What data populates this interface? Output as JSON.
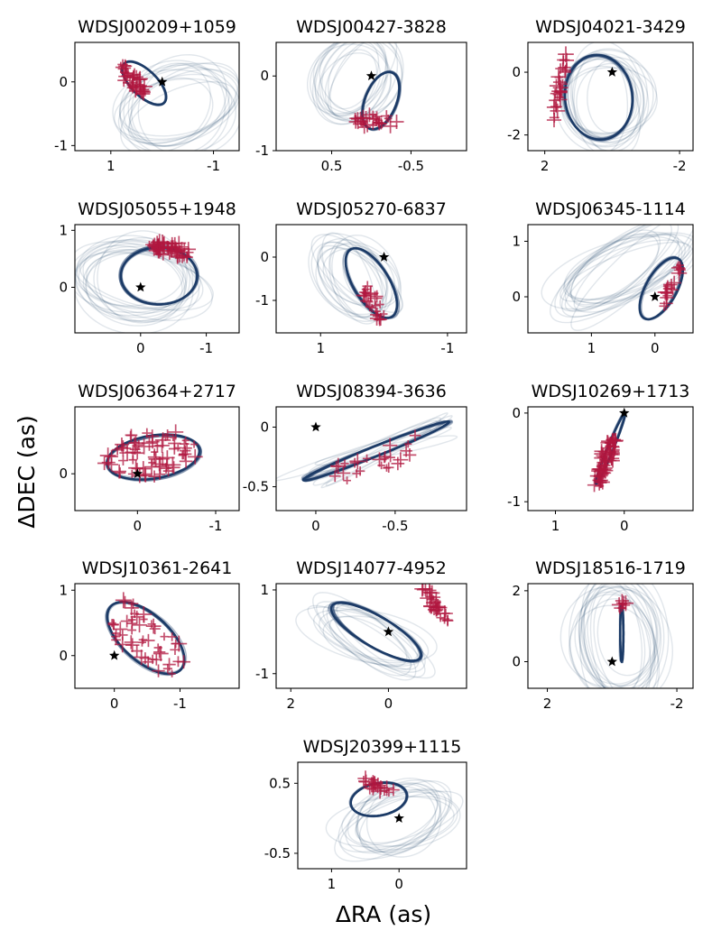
{
  "figure": {
    "xlabel": "ΔRA (as)",
    "ylabel": "ΔDEC (as)"
  },
  "colors": {
    "orbit": "#1b3a66",
    "observation": "#b0173f",
    "primary_star": "#000000"
  },
  "chart_data": [
    {
      "type": "scatter",
      "title": "WDSJ00209+1059",
      "xlim": [
        1.7,
        -1.5
      ],
      "ylim": [
        -1.08,
        0.62
      ],
      "xticks": [
        1,
        -1
      ],
      "xticklabels": [
        "1",
        "-1"
      ],
      "yticks": [
        0,
        -1
      ],
      "yticklabels": [
        "0",
        "-1"
      ],
      "primary": [
        0,
        0
      ],
      "best_orbit": {
        "cx": 0.35,
        "cy": -0.02,
        "a": 0.5,
        "b": 0.22,
        "angle": 35
      },
      "orbit_bundle": {
        "cx": -0.3,
        "cy": -0.4,
        "a": 1.05,
        "b": 0.65,
        "angle": -10,
        "count": 14
      },
      "observations": {
        "cx": 0.6,
        "cy": 0.05,
        "a": 0.35,
        "b": 0.12,
        "angle": 40,
        "count": 40
      }
    },
    {
      "type": "scatter",
      "title": "WDSJ00427-3828",
      "xlim": [
        1.2,
        -1.2
      ],
      "ylim": [
        -1.0,
        0.45
      ],
      "xticks": [
        0.5,
        -0.5
      ],
      "xticklabels": [
        "0.5",
        "-0.5"
      ],
      "yticks": [
        0,
        -1
      ],
      "yticklabels": [
        "0",
        "-1"
      ],
      "primary": [
        0,
        0
      ],
      "best_orbit": {
        "cx": -0.12,
        "cy": -0.33,
        "a": 0.4,
        "b": 0.2,
        "angle": -70
      },
      "orbit_bundle": {
        "cx": 0.2,
        "cy": -0.05,
        "a": 0.6,
        "b": 0.45,
        "angle": -60,
        "count": 14
      },
      "observations": {
        "cx": -0.05,
        "cy": -0.6,
        "a": 0.28,
        "b": 0.1,
        "angle": 0,
        "count": 30
      }
    },
    {
      "type": "scatter",
      "title": "WDSJ04021-3429",
      "xlim": [
        2.5,
        -2.4
      ],
      "ylim": [
        -2.5,
        0.95
      ],
      "xticks": [
        2,
        -2
      ],
      "xticklabels": [
        "2",
        "-2"
      ],
      "yticks": [
        0,
        -2
      ],
      "yticklabels": [
        "0",
        "-2"
      ],
      "primary": [
        0,
        0
      ],
      "best_orbit": {
        "cx": 0.4,
        "cy": -0.8,
        "a": 1.35,
        "b": 1.0,
        "angle": -95
      },
      "orbit_bundle": {
        "cx": 0.2,
        "cy": -0.9,
        "a": 1.5,
        "b": 1.2,
        "angle": -95,
        "count": 14
      },
      "observations": {
        "cx": 1.55,
        "cy": -0.5,
        "a": 1.1,
        "b": 0.12,
        "angle": -80,
        "count": 30
      }
    },
    {
      "type": "scatter",
      "title": "WDSJ05055+1948",
      "xlim": [
        1.0,
        -1.5
      ],
      "ylim": [
        -0.8,
        1.1
      ],
      "xticks": [
        0,
        -1
      ],
      "xticklabels": [
        "0",
        "-1"
      ],
      "yticks": [
        1,
        0
      ],
      "yticklabels": [
        "1",
        "0"
      ],
      "primary": [
        0,
        0
      ],
      "best_orbit": {
        "cx": -0.28,
        "cy": 0.2,
        "a": 0.58,
        "b": 0.5,
        "angle": 0
      },
      "orbit_bundle": {
        "cx": 0.0,
        "cy": 0.1,
        "a": 0.9,
        "b": 0.7,
        "angle": 10,
        "count": 16
      },
      "observations": {
        "cx": -0.45,
        "cy": 0.66,
        "a": 0.35,
        "b": 0.15,
        "angle": 10,
        "count": 60
      }
    },
    {
      "type": "scatter",
      "title": "WDSJ05270-6837",
      "xlim": [
        1.7,
        -1.3
      ],
      "ylim": [
        -1.75,
        0.75
      ],
      "xticks": [
        1,
        -1
      ],
      "xticklabels": [
        "1",
        "-1"
      ],
      "yticks": [
        0,
        -1
      ],
      "yticklabels": [
        "0",
        "-1"
      ],
      "primary": [
        0,
        0
      ],
      "best_orbit": {
        "cx": 0.2,
        "cy": -0.6,
        "a": 0.85,
        "b": 0.3,
        "angle": 70
      },
      "orbit_bundle": {
        "cx": 0.4,
        "cy": -0.5,
        "a": 1.0,
        "b": 0.5,
        "angle": 65,
        "count": 14
      },
      "observations": {
        "cx": 0.18,
        "cy": -1.05,
        "a": 0.45,
        "b": 0.12,
        "angle": 70,
        "count": 25
      }
    },
    {
      "type": "scatter",
      "title": "WDSJ06345-1114",
      "xlim": [
        2.0,
        -0.6
      ],
      "ylim": [
        -0.65,
        1.3
      ],
      "xticks": [
        1,
        0
      ],
      "xticklabels": [
        "1",
        "0"
      ],
      "yticks": [
        1,
        0
      ],
      "yticklabels": [
        "1",
        "0"
      ],
      "primary": [
        0,
        0
      ],
      "best_orbit": {
        "cx": -0.1,
        "cy": 0.15,
        "a": 0.6,
        "b": 0.25,
        "angle": -65
      },
      "orbit_bundle": {
        "cx": 0.5,
        "cy": 0.5,
        "a": 1.2,
        "b": 0.45,
        "angle": -35,
        "count": 16
      },
      "observations": {
        "cx": -0.25,
        "cy": 0.2,
        "a": 0.5,
        "b": 0.06,
        "angle": -70,
        "count": 20
      }
    },
    {
      "type": "scatter",
      "title": "WDSJ06364+2717",
      "xlim": [
        0.8,
        -1.3
      ],
      "ylim": [
        -0.55,
        1.0
      ],
      "xticks": [
        0,
        -1
      ],
      "xticklabels": [
        "0",
        "-1"
      ],
      "yticks": [
        0
      ],
      "yticklabels": [
        "0"
      ],
      "primary": [
        0,
        0
      ],
      "best_orbit": {
        "cx": -0.2,
        "cy": 0.25,
        "a": 0.6,
        "b": 0.32,
        "angle": -12
      },
      "observations": {
        "cx": -0.2,
        "cy": 0.3,
        "a": 0.65,
        "b": 0.35,
        "angle": -12,
        "count": 70
      }
    },
    {
      "type": "scatter",
      "title": "WDSJ08394-3636",
      "xlim": [
        0.25,
        -0.95
      ],
      "ylim": [
        -0.7,
        0.17
      ],
      "xticks": [
        0,
        -0.5
      ],
      "xticklabels": [
        "0",
        "-0.5"
      ],
      "yticks": [
        0,
        -0.5
      ],
      "yticklabels": [
        "0",
        "-0.5"
      ],
      "primary": [
        0,
        0
      ],
      "best_orbit": {
        "cx": -0.38,
        "cy": -0.2,
        "a": 0.52,
        "b": 0.04,
        "angle": -28
      },
      "orbit_bundle": {
        "cx": -0.38,
        "cy": -0.2,
        "a": 0.55,
        "b": 0.05,
        "angle": -28,
        "count": 8
      },
      "observations": {
        "cx": -0.4,
        "cy": -0.26,
        "a": 0.4,
        "b": 0.1,
        "angle": -28,
        "count": 25
      }
    },
    {
      "type": "scatter",
      "title": "WDSJ10269+1713",
      "xlim": [
        1.4,
        -1.0
      ],
      "ylim": [
        -1.1,
        0.07
      ],
      "xticks": [
        1,
        0
      ],
      "xticklabels": [
        "1",
        "0"
      ],
      "yticks": [
        0,
        -1
      ],
      "yticklabels": [
        "0",
        "-1"
      ],
      "primary": [
        0,
        0
      ],
      "best_orbit": {
        "cx": 0.2,
        "cy": -0.4,
        "a": 0.45,
        "b": 0.04,
        "angle": -62
      },
      "observations": {
        "cx": 0.28,
        "cy": -0.55,
        "a": 0.32,
        "b": 0.1,
        "angle": -65,
        "count": 70
      }
    },
    {
      "type": "scatter",
      "title": "WDSJ10361-2641",
      "xlim": [
        0.6,
        -1.9
      ],
      "ylim": [
        -0.5,
        1.1
      ],
      "xticks": [
        0,
        -1
      ],
      "xticklabels": [
        "0",
        "-1"
      ],
      "yticks": [
        1,
        0
      ],
      "yticklabels": [
        "1",
        "0"
      ],
      "primary": [
        0,
        0
      ],
      "best_orbit": {
        "cx": -0.48,
        "cy": 0.27,
        "a": 0.72,
        "b": 0.36,
        "angle": 42
      },
      "observations": {
        "cx": -0.48,
        "cy": 0.3,
        "a": 0.78,
        "b": 0.38,
        "angle": 42,
        "count": 50
      }
    },
    {
      "type": "scatter",
      "title": "WDSJ14077-4952",
      "xlim": [
        2.3,
        -1.6
      ],
      "ylim": [
        -1.35,
        1.15
      ],
      "xticks": [
        2,
        0
      ],
      "xticklabels": [
        "2",
        "0"
      ],
      "yticks": [
        1,
        -1
      ],
      "yticklabels": [
        "1",
        "-1"
      ],
      "primary": [
        0,
        0
      ],
      "best_orbit": {
        "cx": 0.25,
        "cy": 0.0,
        "a": 1.1,
        "b": 0.35,
        "angle": 35
      },
      "orbit_bundle": {
        "cx": 0.4,
        "cy": -0.15,
        "a": 1.25,
        "b": 0.5,
        "angle": 30,
        "count": 12
      },
      "observations": {
        "cx": -0.95,
        "cy": 0.65,
        "a": 0.5,
        "b": 0.12,
        "angle": 60,
        "count": 30
      }
    },
    {
      "type": "scatter",
      "title": "WDSJ18516-1719",
      "xlim": [
        2.6,
        -2.5
      ],
      "ylim": [
        -0.75,
        2.2
      ],
      "xticks": [
        2,
        -2
      ],
      "xticklabels": [
        "2",
        "-2"
      ],
      "yticks": [
        2,
        0
      ],
      "yticklabels": [
        "2",
        "0"
      ],
      "primary": [
        0,
        0
      ],
      "best_orbit": {
        "cx": -0.3,
        "cy": 0.8,
        "a": 0.8,
        "b": 0.05,
        "angle": 90
      },
      "orbit_bundle": {
        "cx": -0.2,
        "cy": 0.6,
        "a": 1.6,
        "b": 1.3,
        "angle": 80,
        "count": 18
      },
      "observations": {
        "cx": -0.32,
        "cy": 1.6,
        "a": 0.12,
        "b": 0.12,
        "angle": 0,
        "count": 8
      }
    },
    {
      "type": "scatter",
      "title": "WDSJ20399+1115",
      "xlim": [
        1.5,
        -1.0
      ],
      "ylim": [
        -0.72,
        0.8
      ],
      "xticks": [
        1,
        0
      ],
      "xticklabels": [
        "1",
        "0"
      ],
      "yticks": [
        0.5,
        -0.5
      ],
      "yticklabels": [
        "0.5",
        "-0.5"
      ],
      "primary": [
        0,
        0
      ],
      "best_orbit": {
        "cx": 0.3,
        "cy": 0.27,
        "a": 0.42,
        "b": 0.23,
        "angle": -10
      },
      "orbit_bundle": {
        "cx": 0.0,
        "cy": -0.05,
        "a": 0.8,
        "b": 0.45,
        "angle": -20,
        "count": 14
      },
      "observations": {
        "cx": 0.3,
        "cy": 0.46,
        "a": 0.32,
        "b": 0.08,
        "angle": 20,
        "count": 20
      }
    }
  ]
}
